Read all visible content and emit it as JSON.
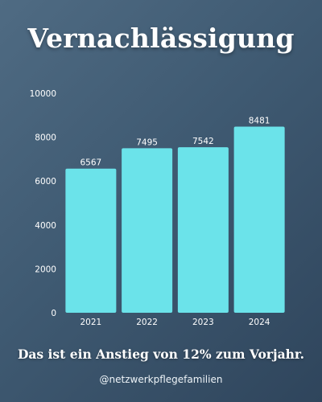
{
  "title": "Vernachlässigung",
  "caption": "Das ist ein Anstieg von 12% zum Vorjahr.",
  "handle": "@netzwerkpflegefamilien",
  "colors": {
    "bar": "#6be3ea",
    "text": "#ffffff",
    "axis_text": "#ffffff"
  },
  "chart_data": {
    "type": "bar",
    "categories": [
      "2021",
      "2022",
      "2023",
      "2024"
    ],
    "values": [
      6567,
      7495,
      7542,
      8481
    ],
    "data_labels": [
      "6567",
      "7495",
      "7542",
      "8481"
    ],
    "y_ticks": [
      0,
      2000,
      4000,
      6000,
      8000,
      10000
    ],
    "ylim": [
      0,
      10000
    ],
    "grid": false,
    "legend": "none",
    "title": "",
    "xlabel": "",
    "ylabel": ""
  }
}
